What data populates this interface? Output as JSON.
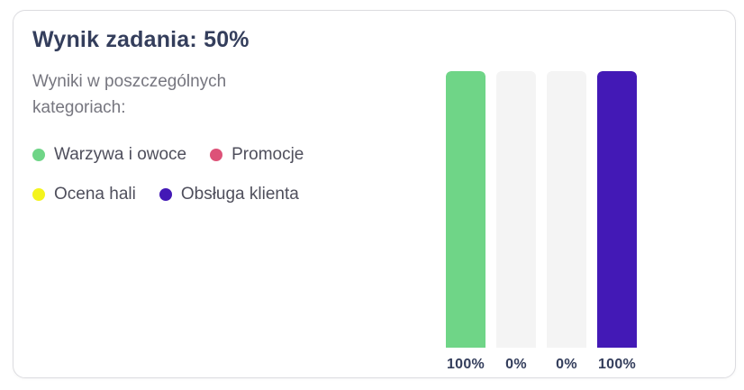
{
  "card": {
    "title": "Wynik zadania: 50%",
    "subtitle": "Wyniki w poszczególnych kategoriach:"
  },
  "legend": {
    "items": [
      {
        "label": "Warzywa i owoce",
        "color": "#6fd587",
        "icon": "circle-dot"
      },
      {
        "label": "Promocje",
        "color": "#dd5278",
        "icon": "circle-dot"
      },
      {
        "label": "Ocena hali",
        "color": "#f4f41d",
        "icon": "circle-dot"
      },
      {
        "label": "Obsługa klienta",
        "color": "#4319b6",
        "icon": "circle-dot"
      }
    ]
  },
  "chart_data": {
    "type": "bar",
    "title": "",
    "xlabel": "",
    "ylabel": "",
    "categories": [
      "Warzywa i owoce",
      "Promocje",
      "Ocena hali",
      "Obsługa klienta"
    ],
    "values": [
      100,
      0,
      0,
      100
    ],
    "value_labels": [
      "100%",
      "0%",
      "0%",
      "100%"
    ],
    "bar_colors": [
      "#6fd587",
      "#dd5278",
      "#f4f41d",
      "#4319b6"
    ],
    "track_color": "#f4f4f4",
    "ylim": [
      0,
      100
    ],
    "grid": false,
    "legend_position": "left",
    "value_label_position": "below-bar"
  },
  "colors": {
    "heading_text": "#343e5c",
    "subtitle_text": "#76767f",
    "legend_text": "#4f4f5c",
    "card_border": "#dcdce0",
    "background": "#ffffff"
  }
}
